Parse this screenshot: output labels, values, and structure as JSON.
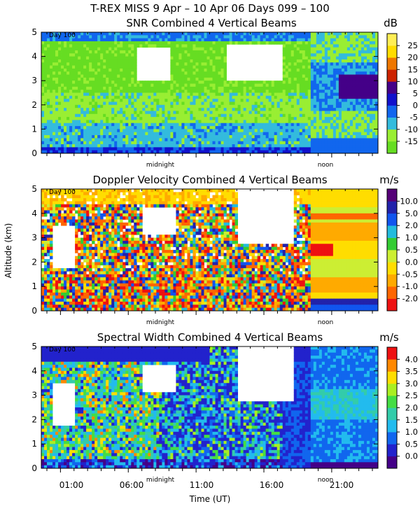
{
  "header": {
    "title": "T-REX MISS    9 Apr – 10 Apr 06 Days 099 – 100"
  },
  "colors": {
    "frame": "#000000",
    "missing": "#ffffff"
  },
  "chart_data": [
    {
      "type": "heatmap",
      "title": "SNR Combined 4 Vertical Beams",
      "unit_label": "dB",
      "day_label": "Day 100",
      "midnight_label": "midnight",
      "noon_label": "noon",
      "ylim": [
        0,
        5
      ],
      "y_ticks": [
        "0",
        "1",
        "2",
        "3",
        "4",
        "5"
      ],
      "colorbar": {
        "labels": [
          "-15",
          "-10",
          "-5",
          "0",
          "5",
          "10",
          "15",
          "20",
          "25"
        ],
        "colors": [
          "#66dd22",
          "#99ee33",
          "#33bbdd",
          "#1166ee",
          "#1111cc",
          "#440088",
          "#cc2200",
          "#ee7700",
          "#ffdd00",
          "#ffee55"
        ]
      },
      "regime": "snr"
    },
    {
      "type": "heatmap",
      "title": "Doppler Velocity Combined 4 Vertical Beams",
      "unit_label": "m/s",
      "day_label": "Day 100",
      "midnight_label": "midnight",
      "noon_label": "noon",
      "ylabel": "Altitude (km)",
      "ylim": [
        0,
        5
      ],
      "y_ticks": [
        "0",
        "1",
        "2",
        "3",
        "4",
        "5"
      ],
      "colorbar": {
        "labels": [
          "-2.0",
          "-1.0",
          "-0.5",
          "0.0",
          "0.5",
          "1.0",
          "2.0",
          "5.0",
          "10.0"
        ],
        "colors": [
          "#ee1111",
          "#ff6600",
          "#ffaa00",
          "#ffdd00",
          "#ccee33",
          "#33cc33",
          "#22bbdd",
          "#1155ee",
          "#2222aa",
          "#550077"
        ]
      },
      "regime": "doppler"
    },
    {
      "type": "heatmap",
      "title": "Spectral Width Combined 4 Vertical Beams",
      "unit_label": "m/s",
      "day_label": "Day 100",
      "midnight_label": "midnight",
      "noon_label": "noon",
      "xlabel": "Time (UT)",
      "ylim": [
        0,
        5
      ],
      "y_ticks": [
        "0",
        "1",
        "2",
        "3",
        "4",
        "5"
      ],
      "x_ticks": [
        "01:00",
        "06:00",
        "11:00",
        "16:00",
        "21:00"
      ],
      "colorbar": {
        "labels": [
          "0.0",
          "0.5",
          "1.0",
          "1.5",
          "2.0",
          "2.5",
          "3.0",
          "3.5",
          "4.0"
        ],
        "colors": [
          "#440088",
          "#2222cc",
          "#1166ee",
          "#22bbee",
          "#33ccaa",
          "#44dd44",
          "#aaee22",
          "#ffdd00",
          "#ff8800",
          "#ee1111"
        ]
      },
      "regime": "width"
    }
  ]
}
